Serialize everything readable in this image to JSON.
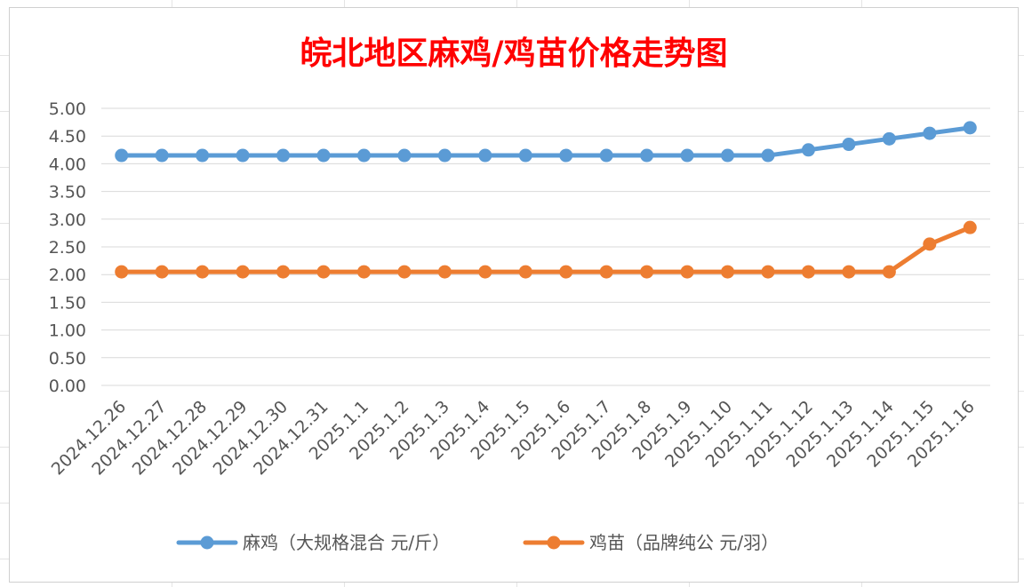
{
  "chart_data": {
    "type": "line",
    "title": "皖北地区麻鸡/鸡苗价格走势图",
    "categories": [
      "2024.12.26",
      "2024.12.27",
      "2024.12.28",
      "2024.12.29",
      "2024.12.30",
      "2024.12.31",
      "2025.1.1",
      "2025.1.2",
      "2025.1.3",
      "2025.1.4",
      "2025.1.5",
      "2025.1.6",
      "2025.1.7",
      "2025.1.8",
      "2025.1.9",
      "2025.1.10",
      "2025.1.11",
      "2025.1.12",
      "2025.1.13",
      "2025.1.14",
      "2025.1.15",
      "2025.1.16"
    ],
    "series": [
      {
        "name": "麻鸡（大规格混合 元/斤）",
        "color": "#5b9bd5",
        "values": [
          4.15,
          4.15,
          4.15,
          4.15,
          4.15,
          4.15,
          4.15,
          4.15,
          4.15,
          4.15,
          4.15,
          4.15,
          4.15,
          4.15,
          4.15,
          4.15,
          4.15,
          4.25,
          4.35,
          4.45,
          4.55,
          4.65
        ]
      },
      {
        "name": "鸡苗（品牌纯公 元/羽）",
        "color": "#ed7d31",
        "values": [
          2.05,
          2.05,
          2.05,
          2.05,
          2.05,
          2.05,
          2.05,
          2.05,
          2.05,
          2.05,
          2.05,
          2.05,
          2.05,
          2.05,
          2.05,
          2.05,
          2.05,
          2.05,
          2.05,
          2.05,
          2.55,
          2.85
        ]
      }
    ],
    "ylim": [
      0,
      5
    ],
    "yticks": [
      "0.00",
      "0.50",
      "1.00",
      "1.50",
      "2.00",
      "2.50",
      "3.00",
      "3.50",
      "4.00",
      "4.50",
      "5.00"
    ],
    "grid": true,
    "legend": "bottom",
    "grid_color": "#d9d9d9"
  }
}
